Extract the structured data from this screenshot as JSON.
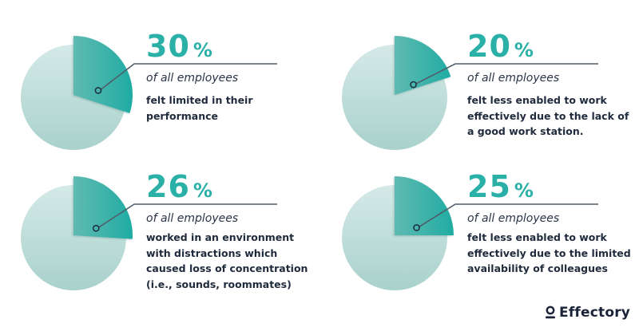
{
  "colors": {
    "slice_dark": "#27ada5",
    "slice_light": "#5dbbb3",
    "pie_rest_top": "#d3e9e7",
    "pie_rest_bottom": "#a8d2cd",
    "number": "#2ab0a7",
    "line": "#4f5d6a",
    "text": "#1f2a3c"
  },
  "chart_data": [
    {
      "type": "pie",
      "title": "30%",
      "values": [
        30,
        70
      ],
      "labels": [
        "highlighted",
        "rest"
      ],
      "number": "30",
      "unit": "%",
      "subtitle": "of all employees",
      "description": "felt limited in their performance",
      "description_lines": [
        "felt limited in their",
        "performance"
      ]
    },
    {
      "type": "pie",
      "title": "20%",
      "values": [
        20,
        80
      ],
      "labels": [
        "highlighted",
        "rest"
      ],
      "number": "20",
      "unit": "%",
      "subtitle": "of all employees",
      "description": "felt less enabled to work effectively due to the lack of a good work station.",
      "description_lines": [
        "felt less enabled to work",
        "effectively due to the lack",
        "of a good work station."
      ]
    },
    {
      "type": "pie",
      "title": "26%",
      "values": [
        26,
        74
      ],
      "labels": [
        "highlighted",
        "rest"
      ],
      "number": "26",
      "unit": "%",
      "subtitle": "of all employees",
      "description": "worked in an environment with distractions which caused loss of concentration (i.e., sounds, roommates)",
      "description_lines": [
        "worked in an environment with",
        "distractions which caused loss",
        "of concentration (i.e., sounds,",
        "roommates)"
      ]
    },
    {
      "type": "pie",
      "title": "25%",
      "values": [
        25,
        75
      ],
      "labels": [
        "highlighted",
        "rest"
      ],
      "number": "25",
      "unit": "%",
      "subtitle": "of all employees",
      "description": "felt less enabled to work effectively due to the limited availability of colleagues",
      "description_lines": [
        "felt less enabled to work",
        "effectively due to the limited",
        "availability of colleagues"
      ]
    }
  ],
  "brand": {
    "name": "Effectory",
    "icon": "person-icon"
  }
}
